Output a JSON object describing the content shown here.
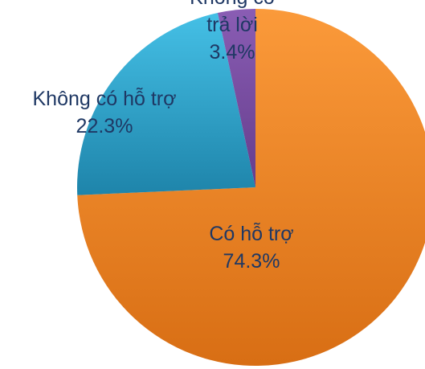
{
  "chart_data": {
    "type": "pie",
    "title": "",
    "slices": [
      {
        "label": "Có hỗ trợ",
        "label_lines": [
          "Có hỗ trợ"
        ],
        "value": 74.3,
        "value_label": "74.3%",
        "color": "#f28a24"
      },
      {
        "label": "Không có hỗ trợ",
        "label_lines": [
          "Không có hỗ trợ"
        ],
        "value": 22.3,
        "value_label": "22.3%",
        "color": "#2b9ec8"
      },
      {
        "label": "Không có trả lời",
        "label_lines": [
          "Không có",
          "trả lời"
        ],
        "value": 3.4,
        "value_label": "3.4%",
        "color": "#7a4fa0"
      }
    ],
    "start": "12 o'clock",
    "direction": "clockwise",
    "legend": "none"
  }
}
